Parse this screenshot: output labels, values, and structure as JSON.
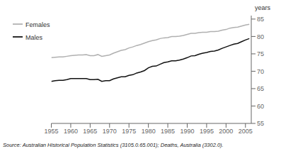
{
  "chart_data": {
    "type": "line",
    "ylabel": "years",
    "annotations": [
      "Source: Australian Historical Population Statistics (3105.0.65.001); Deaths, Australia (3302.0)."
    ],
    "x": [
      1955,
      1956,
      1957,
      1958,
      1959,
      1960,
      1961,
      1962,
      1963,
      1964,
      1965,
      1966,
      1967,
      1968,
      1969,
      1970,
      1971,
      1972,
      1973,
      1974,
      1975,
      1976,
      1977,
      1978,
      1979,
      1980,
      1981,
      1982,
      1983,
      1984,
      1985,
      1986,
      1987,
      1988,
      1989,
      1990,
      1991,
      1992,
      1993,
      1994,
      1995,
      1996,
      1997,
      1998,
      1999,
      2000,
      2001,
      2002,
      2003,
      2004,
      2005,
      2006
    ],
    "series": [
      {
        "name": "Males",
        "color": "#111111",
        "values": [
          67.1,
          67.3,
          67.4,
          67.4,
          67.6,
          67.9,
          67.9,
          67.9,
          67.9,
          67.9,
          67.6,
          67.6,
          67.7,
          67.1,
          67.3,
          67.3,
          67.8,
          68.1,
          68.4,
          68.4,
          68.8,
          69.0,
          69.5,
          69.8,
          70.2,
          71.0,
          71.4,
          71.5,
          72.0,
          72.5,
          72.7,
          73.0,
          73.0,
          73.2,
          73.5,
          73.9,
          74.4,
          74.5,
          74.9,
          75.2,
          75.4,
          75.7,
          75.8,
          76.1,
          76.6,
          77.0,
          77.4,
          77.8,
          78.0,
          78.5,
          79.0,
          79.4
        ]
      },
      {
        "name": "Females",
        "color": "#b0b0b0",
        "values": [
          73.9,
          74.0,
          74.1,
          74.1,
          74.3,
          74.5,
          74.6,
          74.7,
          74.7,
          74.8,
          74.5,
          74.5,
          74.8,
          74.3,
          74.5,
          74.7,
          75.2,
          75.6,
          76.0,
          76.2,
          76.7,
          77.0,
          77.4,
          77.7,
          78.1,
          78.5,
          78.8,
          79.0,
          79.4,
          79.6,
          79.7,
          80.0,
          80.0,
          80.1,
          80.3,
          80.6,
          80.9,
          80.9,
          81.1,
          81.2,
          81.2,
          81.4,
          81.4,
          81.5,
          81.8,
          82.0,
          82.4,
          82.6,
          82.7,
          83.0,
          83.3,
          83.5
        ]
      }
    ],
    "xlim": [
      1955,
      2006.5
    ],
    "ylim": [
      55,
      86
    ],
    "xticks": [
      1955,
      1960,
      1965,
      1970,
      1975,
      1980,
      1985,
      1990,
      1995,
      2000,
      2005
    ],
    "yticks": [
      55,
      60,
      65,
      70,
      75,
      80,
      85
    ],
    "legend": "upper left",
    "grid": false
  }
}
